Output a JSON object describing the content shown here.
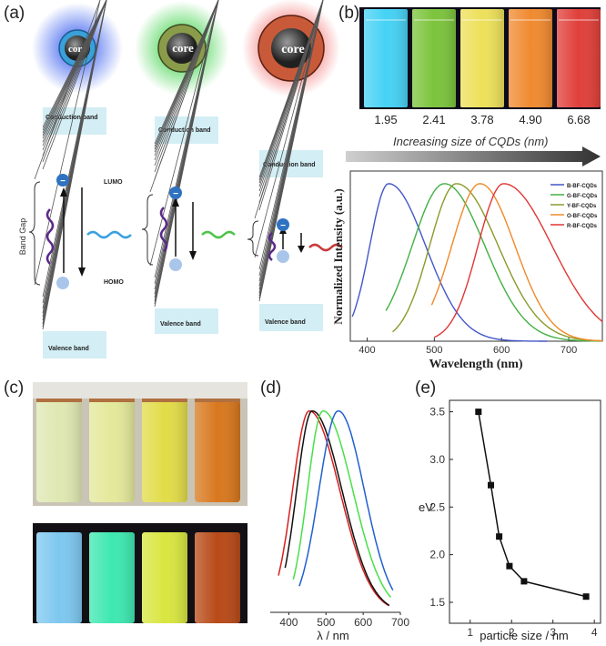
{
  "panel_labels": {
    "a": "(a)",
    "b": "(b)",
    "c": "(c)",
    "d": "(d)",
    "e": "(e)"
  },
  "panel_a": {
    "core_label": "core",
    "conduction_band": "Conduction band",
    "valence_band": "Valence band",
    "lumo": "LUMO",
    "homo": "HOMO",
    "band_gap": "Band Gap",
    "electron_symbol": "−",
    "glow_colors": [
      "#4a6cf0",
      "#3fd24a",
      "#f05050"
    ]
  },
  "panel_b": {
    "vial_sizes": [
      "1.95",
      "2.41",
      "3.78",
      "4.90",
      "6.68"
    ],
    "vial_colors": [
      "#46d2f5",
      "#7cc43c",
      "#ede05a",
      "#f08a30",
      "#e0403a"
    ],
    "arrow_caption": "Increasing size of CQDs (nm)"
  },
  "panel_c": {
    "daylight_colors": [
      "#dfe8b2",
      "#e3e89a",
      "#e2dc48",
      "#d8781e"
    ],
    "uv_colors": [
      "#7ec8f0",
      "#3ee8b0",
      "#d9e640",
      "#b84a18"
    ]
  },
  "chart_data": [
    {
      "id": "b",
      "type": "line",
      "xlabel": "Wavelength (nm)",
      "ylabel": "Normalized Intensity (a.u.)",
      "xlim": [
        375,
        750
      ],
      "ylim": [
        0,
        1.08
      ],
      "xticks": [
        "400",
        "500",
        "600",
        "700"
      ],
      "legend_position": "top-right",
      "series": [
        {
          "name": "B-BF-CQDs",
          "color": "#4356c8",
          "peak": 432,
          "wl": 28,
          "wr": 55,
          "xmin": 378,
          "xmax": 668
        },
        {
          "name": "G-BF-CQDs",
          "color": "#43b043",
          "peak": 515,
          "wl": 48,
          "wr": 60,
          "xmin": 428,
          "xmax": 750
        },
        {
          "name": "Y-BF-CQDs",
          "color": "#8a9a2a",
          "peak": 533,
          "wl": 40,
          "wr": 62,
          "xmin": 438,
          "xmax": 750
        },
        {
          "name": "O-BF-CQDs",
          "color": "#f08a2a",
          "peak": 568,
          "wl": 42,
          "wr": 52,
          "xmin": 496,
          "xmax": 750
        },
        {
          "name": "R-BF-CQDs",
          "color": "#e03636",
          "peak": 603,
          "wl": 38,
          "wr": 72,
          "xmin": 500,
          "xmax": 750
        }
      ]
    },
    {
      "id": "d",
      "type": "line",
      "xlabel": "λ / nm",
      "xlim": [
        350,
        700
      ],
      "ylim": [
        0,
        1.03
      ],
      "xticks": [
        "400",
        "500",
        "600",
        "700"
      ],
      "series": [
        {
          "name": "red",
          "color": "#d42020",
          "peak": 455,
          "wl": 45,
          "wr": 82,
          "xmin": 372,
          "xmax": 670
        },
        {
          "name": "black",
          "color": "#111111",
          "peak": 463,
          "wl": 42,
          "wr": 80,
          "xmin": 390,
          "xmax": 670
        },
        {
          "name": "green",
          "color": "#48e048",
          "peak": 492,
          "wl": 42,
          "wr": 80,
          "xmin": 412,
          "xmax": 675
        },
        {
          "name": "blue",
          "color": "#2060d0",
          "peak": 533,
          "wl": 52,
          "wr": 70,
          "xmin": 428,
          "xmax": 680
        }
      ]
    },
    {
      "id": "e",
      "type": "scatter",
      "xlabel": "particle size / nm",
      "ylabel": "eV",
      "xlim": [
        0.5,
        4.15
      ],
      "ylim": [
        1.28,
        3.62
      ],
      "xticks": [
        1,
        2,
        3,
        4
      ],
      "yticks": [
        "1.5",
        "2.0",
        "2.5",
        "3.0",
        "3.5"
      ],
      "points": [
        [
          1.2,
          3.5
        ],
        [
          1.5,
          2.73
        ],
        [
          1.7,
          2.19
        ],
        [
          1.95,
          1.88
        ],
        [
          2.3,
          1.72
        ],
        [
          3.8,
          1.56
        ]
      ]
    }
  ]
}
